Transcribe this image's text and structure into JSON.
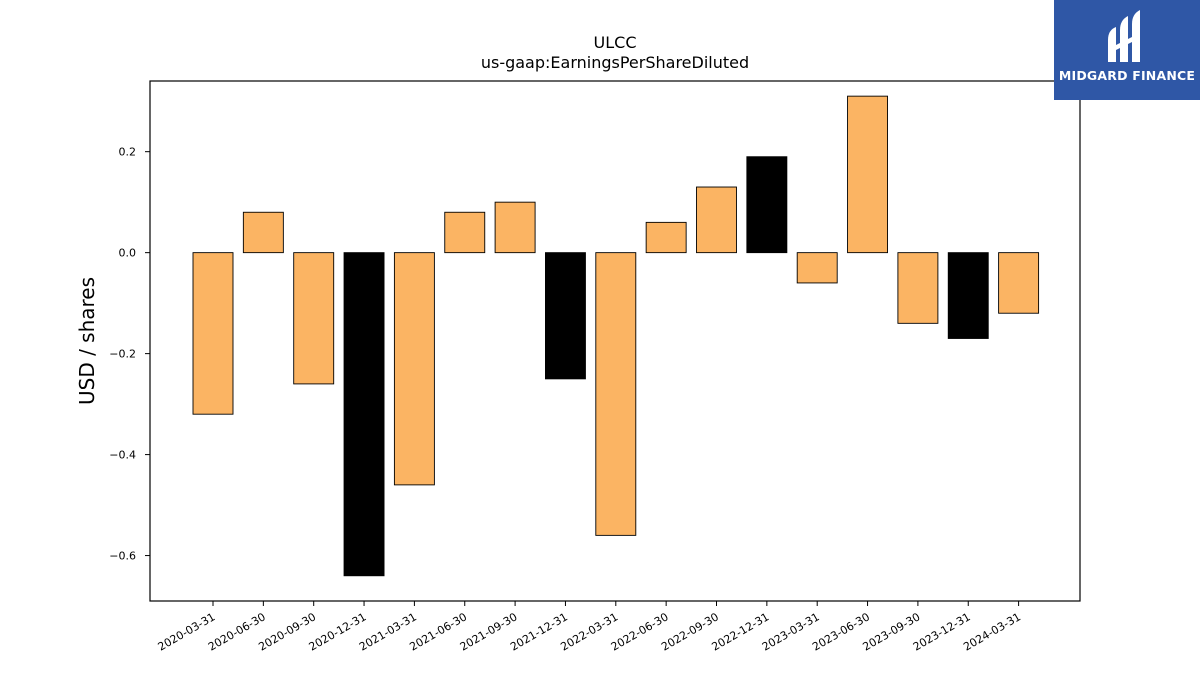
{
  "colors": {
    "bar_default": "#fbb463",
    "bar_highlight": "#000000",
    "edge": "#000000",
    "logo_bg": "#2f57a6",
    "logo_fg": "#ffffff"
  },
  "logo": {
    "icon": "mf-monogram-icon",
    "text": "MIDGARD FINANCE"
  },
  "chart_data": {
    "type": "bar",
    "title": "ULCC",
    "subtitle": "us-gaap:EarningsPerShareDiluted",
    "xlabel": "",
    "ylabel": "USD / shares",
    "ylim": [
      -0.69,
      0.34
    ],
    "yticks": [
      -0.6,
      -0.4,
      -0.2,
      0.0,
      0.2
    ],
    "ytick_labels": [
      "−0.6",
      "−0.4",
      "−0.2",
      "0.0",
      "0.2"
    ],
    "grid": false,
    "legend": "none",
    "categories": [
      "2020-03-31",
      "2020-06-30",
      "2020-09-30",
      "2020-12-31",
      "2021-03-31",
      "2021-06-30",
      "2021-09-30",
      "2021-12-31",
      "2022-03-31",
      "2022-06-30",
      "2022-09-30",
      "2022-12-31",
      "2023-03-31",
      "2023-06-30",
      "2023-09-30",
      "2023-12-31",
      "2024-03-31"
    ],
    "values": [
      -0.32,
      0.08,
      -0.26,
      -0.64,
      -0.46,
      0.08,
      0.1,
      -0.25,
      -0.56,
      0.06,
      0.13,
      0.19,
      -0.06,
      0.31,
      -0.14,
      -0.17,
      -0.12
    ],
    "highlighted": [
      false,
      false,
      false,
      true,
      false,
      false,
      false,
      true,
      false,
      false,
      false,
      true,
      false,
      false,
      false,
      true,
      false
    ]
  }
}
